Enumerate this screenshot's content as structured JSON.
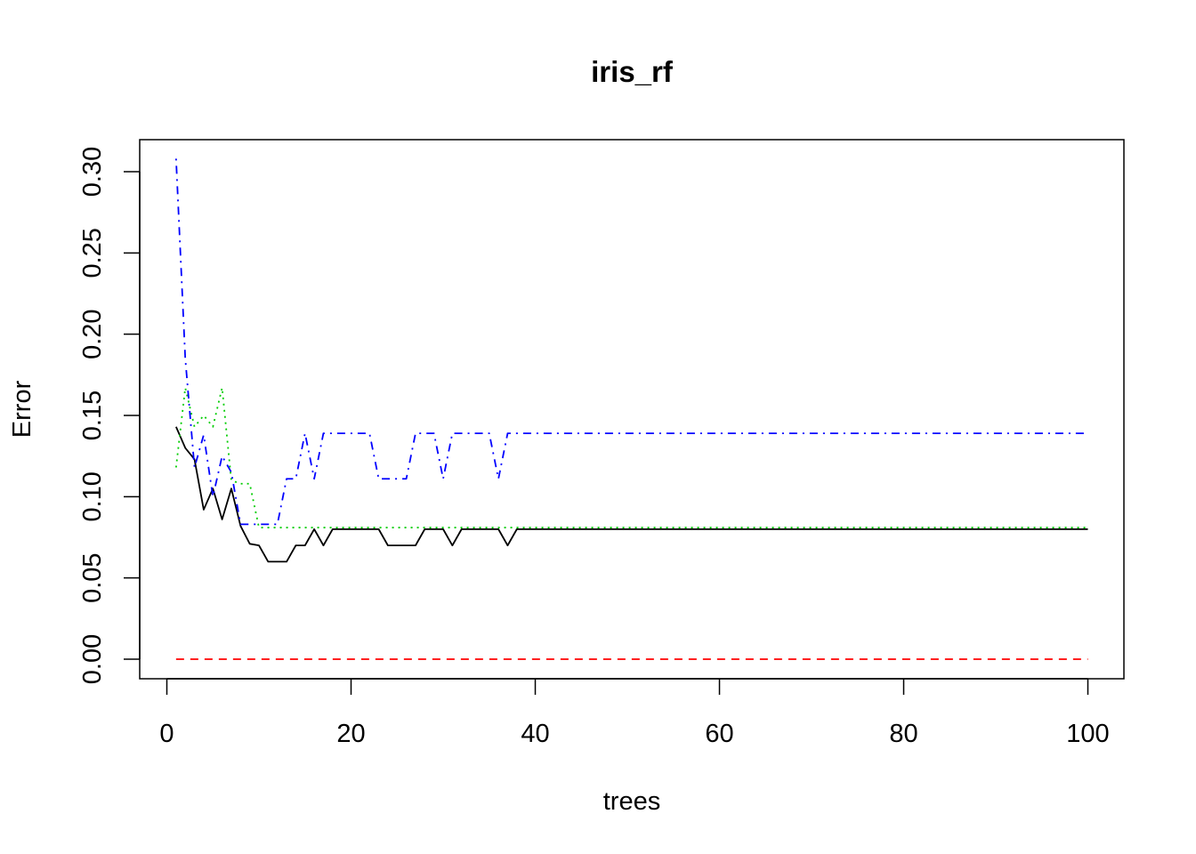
{
  "chart_data": {
    "type": "line",
    "title": "iris_rf",
    "xlabel": "trees",
    "ylabel": "Error",
    "xlim": [
      0,
      100
    ],
    "ylim": [
      0,
      0.31
    ],
    "x_ticks": [
      0,
      20,
      40,
      60,
      80,
      100
    ],
    "y_ticks": [
      0.0,
      0.05,
      0.1,
      0.15,
      0.2,
      0.25,
      0.3
    ],
    "y_tick_labels": [
      "0.00",
      "0.05",
      "0.10",
      "0.15",
      "0.20",
      "0.25",
      "0.30"
    ],
    "x_tick_labels": [
      "0",
      "20",
      "40",
      "60",
      "80",
      "100"
    ],
    "grid": false,
    "series": [
      {
        "color": "#000000",
        "dash": "solid",
        "values": [
          0.143,
          0.13,
          0.123,
          0.092,
          0.105,
          0.086,
          0.105,
          0.082,
          0.071,
          0.07,
          0.06,
          0.06,
          0.06,
          0.07,
          0.07,
          0.08,
          0.07,
          0.08,
          0.08,
          0.08,
          0.08,
          0.08,
          0.08,
          0.07,
          0.07,
          0.07,
          0.07,
          0.08,
          0.08,
          0.08,
          0.07,
          0.08,
          0.08,
          0.08,
          0.08,
          0.08,
          0.07,
          0.08,
          0.08,
          0.08,
          0.08,
          0.08,
          0.08,
          0.08,
          0.08,
          0.08,
          0.08,
          0.08,
          0.08,
          0.08,
          0.08,
          0.08,
          0.08,
          0.08,
          0.08,
          0.08,
          0.08,
          0.08,
          0.08,
          0.08,
          0.08,
          0.08,
          0.08,
          0.08,
          0.08,
          0.08,
          0.08,
          0.08,
          0.08,
          0.08,
          0.08,
          0.08,
          0.08,
          0.08,
          0.08,
          0.08,
          0.08,
          0.08,
          0.08,
          0.08,
          0.08,
          0.08,
          0.08,
          0.08,
          0.08,
          0.08,
          0.08,
          0.08,
          0.08,
          0.08,
          0.08,
          0.08,
          0.08,
          0.08,
          0.08,
          0.08,
          0.08,
          0.08,
          0.08,
          0.08
        ]
      },
      {
        "color": "#ff0000",
        "dash": "dashed",
        "values": [
          0,
          0,
          0,
          0,
          0,
          0,
          0,
          0,
          0,
          0,
          0,
          0,
          0,
          0,
          0,
          0,
          0,
          0,
          0,
          0,
          0,
          0,
          0,
          0,
          0,
          0,
          0,
          0,
          0,
          0,
          0,
          0,
          0,
          0,
          0,
          0,
          0,
          0,
          0,
          0,
          0,
          0,
          0,
          0,
          0,
          0,
          0,
          0,
          0,
          0,
          0,
          0,
          0,
          0,
          0,
          0,
          0,
          0,
          0,
          0,
          0,
          0,
          0,
          0,
          0,
          0,
          0,
          0,
          0,
          0,
          0,
          0,
          0,
          0,
          0,
          0,
          0,
          0,
          0,
          0,
          0,
          0,
          0,
          0,
          0,
          0,
          0,
          0,
          0,
          0,
          0,
          0,
          0,
          0,
          0,
          0,
          0,
          0,
          0,
          0
        ]
      },
      {
        "color": "#00cd00",
        "dash": "dotted",
        "values": [
          0.118,
          0.167,
          0.143,
          0.15,
          0.143,
          0.167,
          0.11,
          0.108,
          0.108,
          0.081,
          0.081,
          0.081,
          0.081,
          0.081,
          0.081,
          0.081,
          0.081,
          0.081,
          0.081,
          0.081,
          0.081,
          0.081,
          0.081,
          0.081,
          0.081,
          0.081,
          0.081,
          0.081,
          0.081,
          0.081,
          0.081,
          0.081,
          0.081,
          0.081,
          0.081,
          0.081,
          0.081,
          0.081,
          0.081,
          0.081,
          0.081,
          0.081,
          0.081,
          0.081,
          0.081,
          0.081,
          0.081,
          0.081,
          0.081,
          0.081,
          0.081,
          0.081,
          0.081,
          0.081,
          0.081,
          0.081,
          0.081,
          0.081,
          0.081,
          0.081,
          0.081,
          0.081,
          0.081,
          0.081,
          0.081,
          0.081,
          0.081,
          0.081,
          0.081,
          0.081,
          0.081,
          0.081,
          0.081,
          0.081,
          0.081,
          0.081,
          0.081,
          0.081,
          0.081,
          0.081,
          0.081,
          0.081,
          0.081,
          0.081,
          0.081,
          0.081,
          0.081,
          0.081,
          0.081,
          0.081,
          0.081,
          0.081,
          0.081,
          0.081,
          0.081,
          0.081,
          0.081,
          0.081,
          0.081,
          0.081
        ]
      },
      {
        "color": "#0000ff",
        "dash": "dotdash",
        "values": [
          0.308,
          0.185,
          0.118,
          0.138,
          0.1,
          0.125,
          0.115,
          0.083,
          0.083,
          0.083,
          0.083,
          0.083,
          0.111,
          0.111,
          0.139,
          0.111,
          0.139,
          0.139,
          0.139,
          0.139,
          0.139,
          0.139,
          0.111,
          0.111,
          0.111,
          0.111,
          0.139,
          0.139,
          0.139,
          0.111,
          0.139,
          0.139,
          0.139,
          0.139,
          0.139,
          0.111,
          0.139,
          0.139,
          0.139,
          0.139,
          0.139,
          0.139,
          0.139,
          0.139,
          0.139,
          0.139,
          0.139,
          0.139,
          0.139,
          0.139,
          0.139,
          0.139,
          0.139,
          0.139,
          0.139,
          0.139,
          0.139,
          0.139,
          0.139,
          0.139,
          0.139,
          0.139,
          0.139,
          0.139,
          0.139,
          0.139,
          0.139,
          0.139,
          0.139,
          0.139,
          0.139,
          0.139,
          0.139,
          0.139,
          0.139,
          0.139,
          0.139,
          0.139,
          0.139,
          0.139,
          0.139,
          0.139,
          0.139,
          0.139,
          0.139,
          0.139,
          0.139,
          0.139,
          0.139,
          0.139,
          0.139,
          0.139,
          0.139,
          0.139,
          0.139,
          0.139,
          0.139,
          0.139,
          0.139,
          0.139
        ]
      }
    ]
  }
}
